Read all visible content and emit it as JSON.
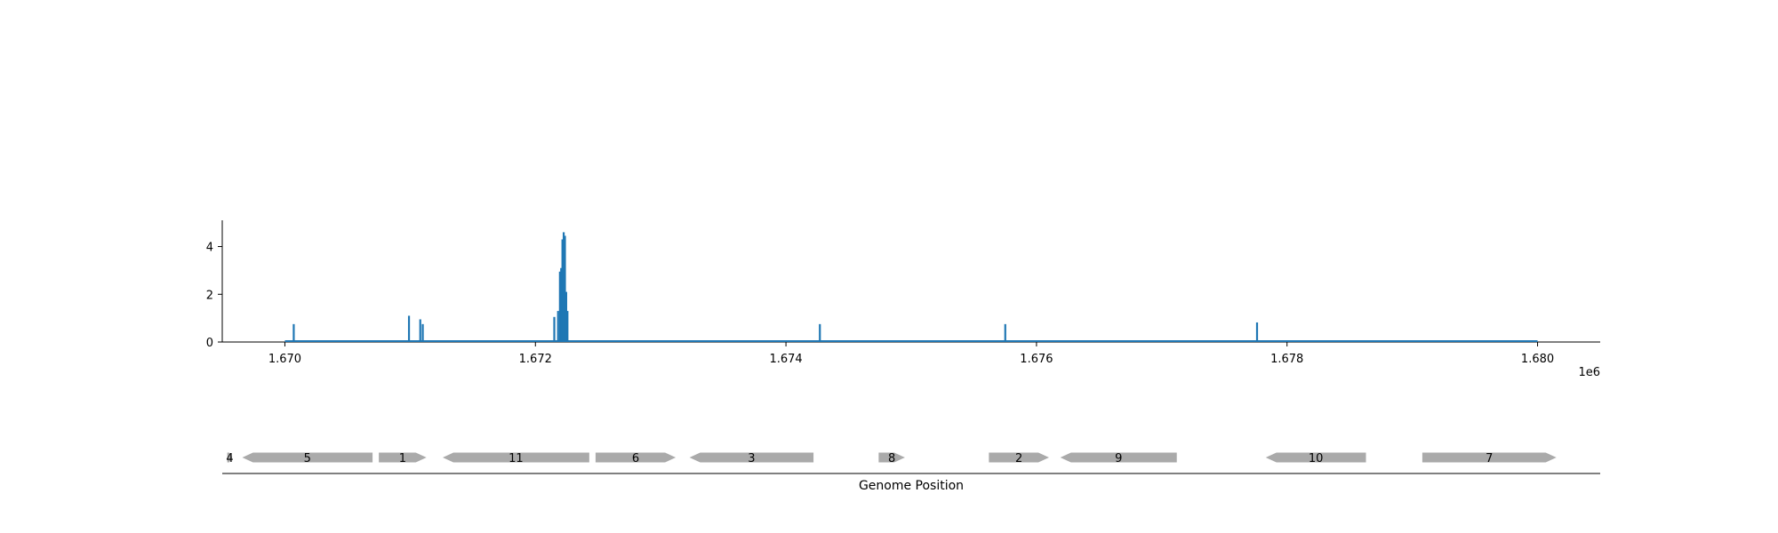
{
  "chart_data": [
    {
      "type": "bar",
      "title": "",
      "xlabel": "",
      "ylabel": "",
      "xlim": [
        1669500,
        1680500
      ],
      "ylim": [
        0,
        5.1
      ],
      "x_offset_label": "1e6",
      "x_ticks": [
        {
          "value": 1670000,
          "label": "1.670"
        },
        {
          "value": 1672000,
          "label": "1.672"
        },
        {
          "value": 1674000,
          "label": "1.674"
        },
        {
          "value": 1676000,
          "label": "1.676"
        },
        {
          "value": 1678000,
          "label": "1.678"
        },
        {
          "value": 1680000,
          "label": "1.680"
        }
      ],
      "y_ticks": [
        {
          "value": 0,
          "label": "0"
        },
        {
          "value": 2,
          "label": "2"
        },
        {
          "value": 4,
          "label": "4"
        }
      ],
      "baseline": [
        1670000,
        1680000
      ],
      "color": "#1f77b4",
      "series": [
        {
          "x": [
            1670070,
            1670990,
            1671080,
            1671100,
            1672150,
            1672180,
            1672195,
            1672205,
            1672215,
            1672225,
            1672235,
            1672245,
            1672255,
            1674270,
            1675750,
            1677760
          ],
          "values": [
            0.75,
            1.1,
            0.95,
            0.75,
            1.05,
            1.3,
            2.95,
            3.1,
            4.3,
            4.6,
            4.45,
            2.1,
            1.3,
            0.75,
            0.75,
            0.82
          ]
        }
      ]
    },
    {
      "type": "gene-track",
      "xlabel": "Genome Position",
      "color": "#aaaaaa",
      "genes": [
        {
          "label": "4",
          "start": 1669540,
          "end": 1669580,
          "strand": "+"
        },
        {
          "label": "5",
          "start": 1669660,
          "end": 1670700,
          "strand": "-"
        },
        {
          "label": "1",
          "start": 1670750,
          "end": 1671130,
          "strand": "+"
        },
        {
          "label": "11",
          "start": 1671260,
          "end": 1672430,
          "strand": "-"
        },
        {
          "label": "6",
          "start": 1672480,
          "end": 1673120,
          "strand": "+"
        },
        {
          "label": "3",
          "start": 1673230,
          "end": 1674220,
          "strand": "-"
        },
        {
          "label": "8",
          "start": 1674740,
          "end": 1674950,
          "strand": "+"
        },
        {
          "label": "2",
          "start": 1675620,
          "end": 1676100,
          "strand": "+"
        },
        {
          "label": "9",
          "start": 1676190,
          "end": 1677120,
          "strand": "-"
        },
        {
          "label": "10",
          "start": 1677830,
          "end": 1678630,
          "strand": "-"
        },
        {
          "label": "7",
          "start": 1679080,
          "end": 1680150,
          "strand": "+"
        }
      ]
    }
  ]
}
